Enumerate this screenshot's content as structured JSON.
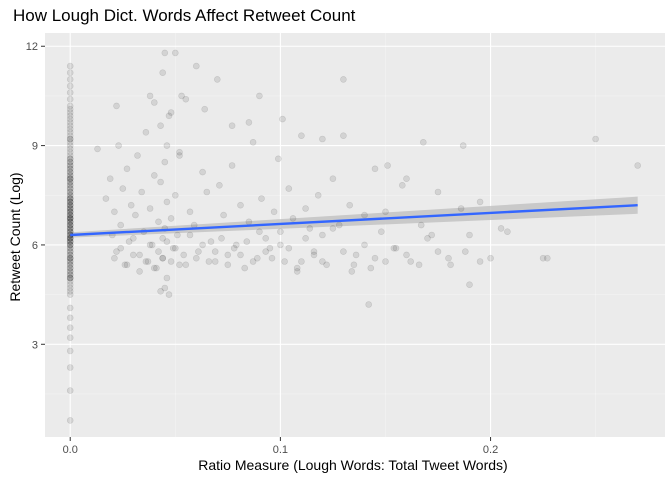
{
  "chart_data": {
    "type": "scatter",
    "title": "How Lough Dict. Words Affect Retweet Count",
    "xlabel": "Ratio Measure (Lough Words: Total Tweet Words)",
    "ylabel": "Retweet Count (Log)",
    "xlim": [
      -0.012,
      0.283
    ],
    "ylim": [
      0.2,
      12.4
    ],
    "x_ticks": [
      0.0,
      0.1,
      0.2
    ],
    "x_tick_labels": [
      "0.0",
      "0.1",
      "0.2"
    ],
    "y_ticks": [
      3,
      6,
      9,
      12
    ],
    "y_tick_labels": [
      "3",
      "6",
      "9",
      "12"
    ],
    "grid": true,
    "legend": "none",
    "colors": {
      "panel_background": "#ebebeb",
      "grid": "#ffffff",
      "points": "#000000",
      "trend_line": "#3366ff",
      "confidence_band": "#bebebe"
    },
    "trend_line": {
      "method": "linear fit with confidence band",
      "x": [
        0.0,
        0.27
      ],
      "y": [
        6.3,
        7.2
      ],
      "ci_lower": [
        6.22,
        6.94
      ],
      "ci_upper": [
        6.38,
        7.46
      ]
    },
    "series": [
      {
        "x": [
          0.0,
          0.0,
          0.0,
          0.0,
          0.0,
          0.0,
          0.0,
          0.0,
          0.0,
          0.0,
          0.0,
          0.0,
          0.0,
          0.0,
          0.0,
          0.0,
          0.0,
          0.0,
          0.0,
          0.0,
          0.0,
          0.0,
          0.0,
          0.0,
          0.0,
          0.0,
          0.0,
          0.0,
          0.0,
          0.0,
          0.0,
          0.0,
          0.0,
          0.0,
          0.0,
          0.0,
          0.0,
          0.0,
          0.0,
          0.0,
          0.0,
          0.0,
          0.0,
          0.0,
          0.0,
          0.0,
          0.0,
          0.0,
          0.0,
          0.0,
          0.0,
          0.0,
          0.0,
          0.0,
          0.0,
          0.0,
          0.0,
          0.0,
          0.0,
          0.0,
          0.0,
          0.0,
          0.0,
          0.0,
          0.0,
          0.0,
          0.0,
          0.0,
          0.0,
          0.0,
          0.0,
          0.0,
          0.0,
          0.0,
          0.0,
          0.0,
          0.0,
          0.0,
          0.0,
          0.0,
          0.0,
          0.0,
          0.0,
          0.0,
          0.0,
          0.0,
          0.0,
          0.0,
          0.0,
          0.0,
          0.0,
          0.0,
          0.0,
          0.0,
          0.0,
          0.0,
          0.0,
          0.0,
          0.0,
          0.0,
          0.0,
          0.0,
          0.0,
          0.0,
          0.0,
          0.0,
          0.0,
          0.0,
          0.0,
          0.0,
          0.0,
          0.0,
          0.0,
          0.0,
          0.0,
          0.0,
          0.0,
          0.0,
          0.0,
          0.0,
          0.0,
          0.0,
          0.0,
          0.0,
          0.0,
          0.0,
          0.0,
          0.0,
          0.0,
          0.0,
          0.013,
          0.017,
          0.019,
          0.02,
          0.021,
          0.022,
          0.023,
          0.024,
          0.025,
          0.026,
          0.027,
          0.028,
          0.029,
          0.03,
          0.031,
          0.032,
          0.033,
          0.034,
          0.035,
          0.036,
          0.037,
          0.038,
          0.039,
          0.04,
          0.04,
          0.041,
          0.042,
          0.043,
          0.043,
          0.044,
          0.044,
          0.045,
          0.045,
          0.045,
          0.046,
          0.046,
          0.047,
          0.048,
          0.049,
          0.05,
          0.051,
          0.052,
          0.053,
          0.055,
          0.057,
          0.059,
          0.061,
          0.063,
          0.065,
          0.067,
          0.069,
          0.071,
          0.073,
          0.075,
          0.077,
          0.079,
          0.081,
          0.083,
          0.085,
          0.087,
          0.089,
          0.091,
          0.093,
          0.095,
          0.097,
          0.099,
          0.1,
          0.102,
          0.104,
          0.106,
          0.108,
          0.11,
          0.112,
          0.114,
          0.116,
          0.118,
          0.12,
          0.122,
          0.125,
          0.128,
          0.13,
          0.133,
          0.136,
          0.14,
          0.143,
          0.145,
          0.148,
          0.15,
          0.154,
          0.158,
          0.162,
          0.167,
          0.17,
          0.175,
          0.181,
          0.186,
          0.19,
          0.2,
          0.208,
          0.227,
          0.25,
          0.27,
          0.021,
          0.024,
          0.027,
          0.03,
          0.033,
          0.036,
          0.038,
          0.04,
          0.042,
          0.044,
          0.046,
          0.048,
          0.05,
          0.052,
          0.054,
          0.057,
          0.06,
          0.063,
          0.066,
          0.069,
          0.072,
          0.075,
          0.078,
          0.081,
          0.084,
          0.087,
          0.09,
          0.093,
          0.096,
          0.1,
          0.104,
          0.108,
          0.112,
          0.116,
          0.12,
          0.125,
          0.13,
          0.135,
          0.14,
          0.145,
          0.15,
          0.155,
          0.16,
          0.166,
          0.172,
          0.18,
          0.188,
          0.195,
          0.043,
          0.045,
          0.047,
          0.022,
          0.05,
          0.055,
          0.06,
          0.07,
          0.077,
          0.09,
          0.101,
          0.12,
          0.13,
          0.142,
          0.16,
          0.168,
          0.175,
          0.187,
          0.195,
          0.225,
          0.19,
          0.205,
          0.134,
          0.151,
          0.11,
          0.085,
          0.064,
          0.038,
          0.044,
          0.046,
          0.048,
          0.052
        ],
        "y": [
          0.7,
          1.6,
          2.3,
          2.8,
          3.2,
          3.5,
          3.8,
          4.1,
          4.5,
          4.6,
          4.7,
          4.8,
          4.9,
          5.0,
          5.0,
          5.1,
          5.1,
          5.2,
          5.2,
          5.3,
          5.3,
          5.4,
          5.4,
          5.5,
          5.5,
          5.6,
          5.6,
          5.7,
          5.7,
          5.8,
          5.8,
          5.9,
          5.9,
          6.0,
          6.0,
          6.0,
          6.1,
          6.1,
          6.1,
          6.2,
          6.2,
          6.2,
          6.3,
          6.3,
          6.3,
          6.4,
          6.4,
          6.4,
          6.5,
          6.5,
          6.5,
          6.6,
          6.6,
          6.6,
          6.7,
          6.7,
          6.7,
          6.8,
          6.8,
          6.8,
          6.9,
          6.9,
          6.9,
          7.0,
          7.0,
          7.0,
          7.1,
          7.1,
          7.1,
          7.2,
          7.2,
          7.2,
          7.3,
          7.3,
          7.3,
          7.4,
          7.4,
          7.5,
          7.5,
          7.6,
          7.6,
          7.7,
          7.7,
          7.8,
          7.8,
          7.9,
          7.9,
          8.0,
          8.0,
          8.1,
          8.1,
          8.2,
          8.2,
          8.3,
          8.3,
          8.4,
          8.4,
          8.5,
          8.5,
          8.6,
          8.7,
          8.8,
          8.9,
          9.0,
          9.1,
          9.2,
          9.3,
          9.4,
          9.5,
          9.6,
          9.7,
          9.8,
          9.9,
          10.0,
          10.1,
          10.2,
          10.4,
          10.6,
          10.8,
          11.0,
          11.2,
          11.4,
          5.0,
          5.6,
          6.2,
          6.8,
          7.4,
          8.0,
          8.6,
          9.2,
          8.9,
          7.4,
          8.0,
          6.3,
          7.0,
          5.8,
          9.0,
          6.6,
          7.7,
          5.4,
          8.3,
          6.1,
          7.2,
          5.7,
          6.9,
          8.7,
          5.2,
          7.6,
          6.4,
          9.4,
          5.5,
          7.1,
          6.0,
          8.1,
          10.3,
          5.3,
          6.7,
          7.9,
          9.6,
          5.6,
          6.2,
          11.8,
          6.5,
          8.5,
          7.3,
          5.0,
          9.9,
          6.8,
          5.9,
          7.5,
          6.3,
          8.8,
          10.5,
          5.4,
          7.0,
          6.6,
          5.8,
          8.2,
          7.6,
          6.1,
          5.5,
          7.8,
          6.9,
          5.7,
          8.4,
          6.0,
          7.2,
          5.3,
          6.7,
          9.1,
          5.6,
          7.4,
          6.2,
          5.9,
          7.0,
          8.6,
          6.4,
          5.5,
          7.7,
          6.8,
          5.2,
          9.3,
          7.1,
          6.5,
          5.8,
          7.5,
          6.3,
          5.4,
          8.0,
          6.6,
          11.0,
          7.2,
          5.7,
          6.9,
          5.3,
          8.3,
          6.4,
          7.0,
          5.9,
          7.8,
          5.5,
          6.6,
          6.2,
          5.8,
          5.4,
          7.1,
          4.8,
          5.6,
          6.4,
          5.6,
          9.2,
          8.4,
          5.6,
          5.9,
          5.4,
          6.2,
          5.7,
          5.5,
          6.0,
          5.3,
          5.8,
          5.6,
          6.1,
          5.5,
          5.9,
          5.4,
          5.7,
          6.3,
          5.6,
          6.0,
          5.5,
          5.8,
          6.2,
          5.4,
          5.9,
          5.7,
          6.1,
          5.5,
          6.4,
          5.8,
          5.6,
          6.0,
          5.9,
          5.3,
          6.2,
          5.7,
          5.5,
          6.5,
          5.8,
          5.4,
          6.0,
          5.6,
          5.5,
          5.9,
          5.7,
          5.4,
          6.3,
          5.6,
          5.8,
          5.5,
          4.6,
          4.7,
          4.5,
          10.2,
          11.8,
          10.4,
          11.4,
          11.0,
          9.6,
          10.5,
          9.8,
          9.2,
          9.3,
          4.2,
          8.0,
          9.1,
          7.6,
          9.0,
          7.3,
          5.6,
          6.3,
          6.5,
          5.2,
          8.4,
          5.5,
          9.7,
          10.1,
          10.5,
          11.2,
          9.0,
          10.0,
          8.7
        ]
      }
    ]
  }
}
